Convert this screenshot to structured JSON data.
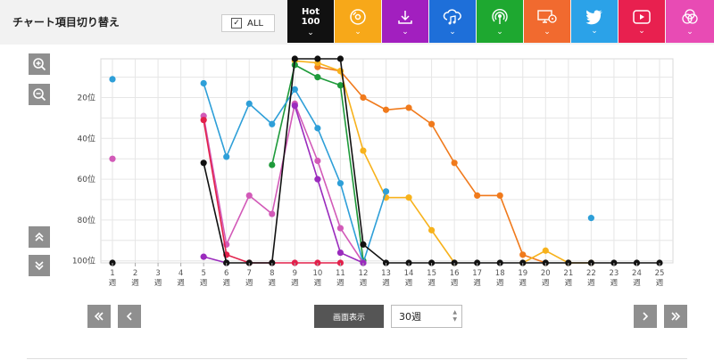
{
  "header": {
    "title": "チャート項目切り替え",
    "all_label": "ALL",
    "tabs": [
      {
        "id": "hot100",
        "label_top": "Hot",
        "label_bottom": "100",
        "color": "#111111",
        "icon": "hot100-text"
      },
      {
        "id": "sales",
        "color": "#f7a819",
        "icon": "cd-disc-icon"
      },
      {
        "id": "download",
        "color": "#a21fbf",
        "icon": "download-icon"
      },
      {
        "id": "streaming",
        "color": "#1e6fd9",
        "icon": "cloud-music-icon"
      },
      {
        "id": "radio",
        "color": "#1ea830",
        "icon": "radio-broadcast-icon"
      },
      {
        "id": "lookup",
        "color": "#f16a2f",
        "icon": "monitor-disc-icon"
      },
      {
        "id": "twitter",
        "color": "#2ba2e8",
        "icon": "twitter-bird-icon"
      },
      {
        "id": "video",
        "color": "#e8204f",
        "icon": "video-play-icon"
      },
      {
        "id": "karaoke",
        "color": "#e84bb4",
        "icon": "triple-circle-icon"
      }
    ]
  },
  "chart_data": {
    "type": "line",
    "y_reversed": true,
    "ylim": [
      1,
      101
    ],
    "yticks": [
      20,
      40,
      60,
      80,
      100
    ],
    "ytick_suffix": "位",
    "x": [
      1,
      2,
      3,
      4,
      5,
      6,
      7,
      8,
      9,
      10,
      11,
      12,
      13,
      14,
      15,
      16,
      17,
      18,
      19,
      20,
      21,
      22,
      23,
      24,
      25
    ],
    "xtick_suffix": "週",
    "grid": true,
    "series": [
      {
        "color": "#f07a1c",
        "points": [
          [
            10,
            5
          ],
          [
            11,
            7
          ],
          [
            12,
            20
          ],
          [
            13,
            26
          ],
          [
            14,
            25
          ],
          [
            15,
            33
          ],
          [
            16,
            52
          ],
          [
            17,
            68
          ],
          [
            18,
            68
          ],
          [
            19,
            97
          ],
          [
            20,
            101
          ]
        ]
      },
      {
        "color": "#f7b21c",
        "points": [
          [
            9,
            2
          ],
          [
            10,
            3
          ],
          [
            11,
            7
          ],
          [
            12,
            46
          ],
          [
            13,
            69
          ],
          [
            14,
            69
          ],
          [
            15,
            85
          ],
          [
            16,
            101
          ],
          [
            19,
            101
          ],
          [
            20,
            95
          ],
          [
            21,
            101
          ],
          [
            22,
            101
          ]
        ]
      },
      {
        "color": "#1e9a3a",
        "points": [
          [
            8,
            53
          ],
          [
            9,
            4
          ],
          [
            10,
            10
          ],
          [
            11,
            14
          ],
          [
            12,
            100
          ]
        ]
      },
      {
        "color": "#2e9fd8",
        "points": [
          [
            1,
            11
          ],
          [
            5,
            13
          ],
          [
            6,
            49
          ],
          [
            7,
            23
          ],
          [
            8,
            33
          ],
          [
            9,
            16
          ],
          [
            10,
            35
          ],
          [
            11,
            62
          ],
          [
            12,
            101
          ],
          [
            13,
            66
          ],
          [
            22,
            79
          ]
        ]
      },
      {
        "color": "#d25ab8",
        "points": [
          [
            1,
            50
          ],
          [
            5,
            29
          ],
          [
            6,
            92
          ],
          [
            7,
            68
          ],
          [
            8,
            77
          ],
          [
            9,
            23
          ],
          [
            10,
            51
          ],
          [
            11,
            84
          ],
          [
            12,
            101
          ]
        ]
      },
      {
        "color": "#9a2bbd",
        "points": [
          [
            5,
            98
          ],
          [
            6,
            101
          ],
          [
            9,
            24
          ],
          [
            10,
            60
          ],
          [
            11,
            96
          ],
          [
            12,
            101
          ]
        ]
      },
      {
        "color": "#e2204a",
        "points": [
          [
            5,
            31
          ],
          [
            6,
            97
          ],
          [
            7,
            101
          ],
          [
            8,
            101
          ],
          [
            9,
            101
          ],
          [
            10,
            101
          ],
          [
            11,
            101
          ]
        ]
      },
      {
        "color": "#111111",
        "points": [
          [
            1,
            101
          ],
          [
            5,
            52
          ],
          [
            6,
            101
          ],
          [
            7,
            101
          ],
          [
            8,
            101
          ],
          [
            9,
            1
          ],
          [
            10,
            1
          ],
          [
            11,
            1
          ],
          [
            12,
            92
          ],
          [
            13,
            101
          ],
          [
            14,
            101
          ],
          [
            15,
            101
          ],
          [
            16,
            101
          ],
          [
            17,
            101
          ],
          [
            18,
            101
          ],
          [
            19,
            101
          ],
          [
            20,
            101
          ],
          [
            21,
            101
          ],
          [
            22,
            101
          ],
          [
            23,
            101
          ],
          [
            24,
            101
          ],
          [
            25,
            101
          ]
        ]
      }
    ]
  },
  "controls": {
    "display_label": "画面表示",
    "range_value": "30週"
  }
}
